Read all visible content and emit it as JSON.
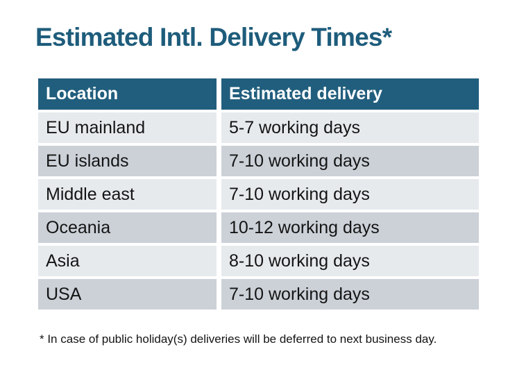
{
  "title": "Estimated Intl. Delivery Times*",
  "table": {
    "headers": [
      "Location",
      "Estimated delivery"
    ],
    "rows": [
      {
        "location": "EU mainland",
        "delivery": "5-7 working days"
      },
      {
        "location": "EU islands",
        "delivery": "7-10 working days"
      },
      {
        "location": "Middle east",
        "delivery": "7-10 working days"
      },
      {
        "location": "Oceania",
        "delivery": "10-12 working days"
      },
      {
        "location": "Asia",
        "delivery": "8-10 working days"
      },
      {
        "location": "USA",
        "delivery": "7-10 working days"
      }
    ]
  },
  "footnote": "* In case of public holiday(s) deliveries will be deferred to next business day.",
  "colors": {
    "title": "#1E5C7B",
    "header_bg": "#215E7D",
    "header_text": "#FFFFFF",
    "row_odd_bg": "#CCD1D8",
    "row_even_bg": "#E7EAED",
    "body_text": "#141414",
    "background": "#FFFFFF"
  },
  "chart_data": {
    "type": "table",
    "title": "Estimated Intl. Delivery Times*",
    "columns": [
      "Location",
      "Estimated delivery"
    ],
    "rows": [
      [
        "EU mainland",
        "5-7 working days"
      ],
      [
        "EU islands",
        "7-10 working days"
      ],
      [
        "Middle east",
        "7-10 working days"
      ],
      [
        "Oceania",
        "10-12 working days"
      ],
      [
        "Asia",
        "8-10 working days"
      ],
      [
        "USA",
        "7-10 working days"
      ]
    ],
    "footnote": "* In case of public holiday(s) deliveries will be deferred to next business day."
  }
}
